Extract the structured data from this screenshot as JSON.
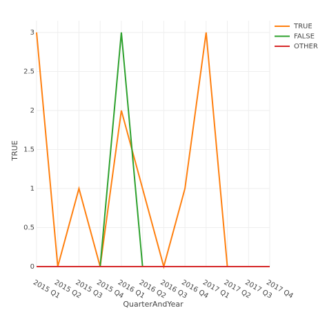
{
  "chart_data": {
    "type": "line",
    "categories": [
      "2015 Q1",
      "2015 Q2",
      "2015 Q3",
      "2015 Q4",
      "2016 Q1",
      "2016 Q2",
      "2016 Q3",
      "2016 Q4",
      "2017 Q1",
      "2017 Q2",
      "2017 Q3",
      "2017 Q4"
    ],
    "series": [
      {
        "name": "TRUE",
        "color": "#ff7f0e",
        "values": [
          3,
          0,
          1,
          0,
          2,
          1,
          0,
          1,
          3,
          0,
          0,
          0
        ]
      },
      {
        "name": "FALSE",
        "color": "#2ca02c",
        "values": [
          0,
          0,
          0,
          0,
          3,
          0,
          0,
          0,
          0,
          0,
          0,
          0
        ]
      },
      {
        "name": "OTHER",
        "color": "#d62728",
        "values": [
          0,
          0,
          0,
          0,
          0,
          0,
          0,
          0,
          0,
          0,
          0,
          0
        ]
      }
    ],
    "x_label": "QuarterAndYear",
    "y_label": "TRUE",
    "ylim": [
      0,
      3.15
    ],
    "yticks": [
      0,
      0.5,
      1,
      1.5,
      2,
      2.5,
      3
    ],
    "grid": true,
    "legend": "top-right"
  }
}
